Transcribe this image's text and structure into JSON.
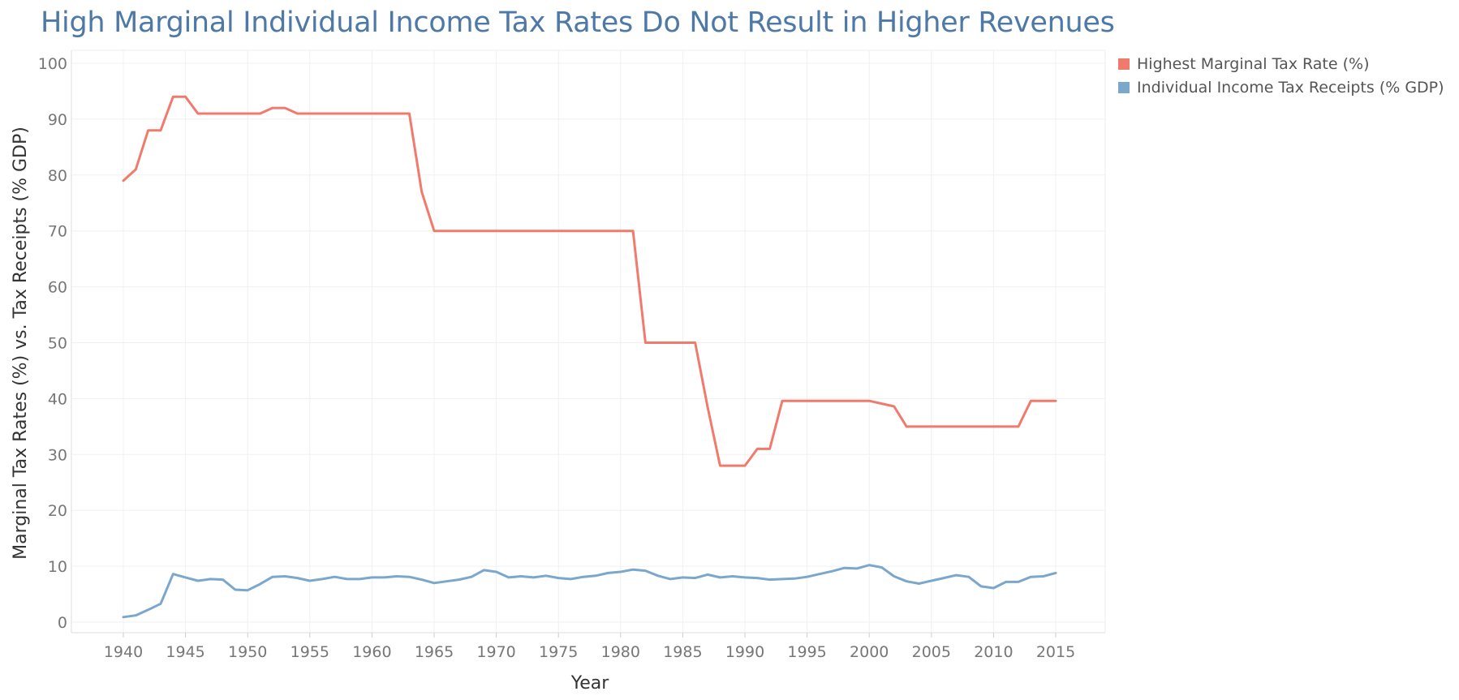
{
  "chart_data": {
    "type": "line",
    "title": "High Marginal Individual Income Tax Rates Do Not Result in Higher Revenues",
    "xlabel": "Year",
    "ylabel": "Marginal Tax Rates (%) vs. Tax Receipts (% GDP)",
    "xlim": [
      1940,
      2015
    ],
    "ylim": [
      0,
      100
    ],
    "x_ticks": [
      1940,
      1945,
      1950,
      1955,
      1960,
      1965,
      1970,
      1975,
      1980,
      1985,
      1990,
      1995,
      2000,
      2005,
      2010,
      2015
    ],
    "y_ticks": [
      0,
      10,
      20,
      30,
      40,
      50,
      60,
      70,
      80,
      90,
      100
    ],
    "grid": true,
    "legend_position": "top-right",
    "x": [
      1940,
      1941,
      1942,
      1943,
      1944,
      1945,
      1946,
      1947,
      1948,
      1949,
      1950,
      1951,
      1952,
      1953,
      1954,
      1955,
      1956,
      1957,
      1958,
      1959,
      1960,
      1961,
      1962,
      1963,
      1964,
      1965,
      1966,
      1967,
      1968,
      1969,
      1970,
      1971,
      1972,
      1973,
      1974,
      1975,
      1976,
      1977,
      1978,
      1979,
      1980,
      1981,
      1982,
      1983,
      1984,
      1985,
      1986,
      1987,
      1988,
      1989,
      1990,
      1991,
      1992,
      1993,
      1994,
      1995,
      1996,
      1997,
      1998,
      1999,
      2000,
      2001,
      2002,
      2003,
      2004,
      2005,
      2006,
      2007,
      2008,
      2009,
      2010,
      2011,
      2012,
      2013,
      2014,
      2015
    ],
    "series": [
      {
        "name": "Highest Marginal Tax Rate (%)",
        "color": "#f07b6c",
        "values": [
          79,
          81,
          88,
          88,
          94,
          94,
          91,
          91,
          91,
          91,
          91,
          91,
          92,
          92,
          91,
          91,
          91,
          91,
          91,
          91,
          91,
          91,
          91,
          91,
          77,
          70,
          70,
          70,
          70,
          70,
          70,
          70,
          70,
          70,
          70,
          70,
          70,
          70,
          70,
          70,
          70,
          70,
          50,
          50,
          50,
          50,
          50,
          38.5,
          28,
          28,
          28,
          31,
          31,
          39.6,
          39.6,
          39.6,
          39.6,
          39.6,
          39.6,
          39.6,
          39.6,
          39.1,
          38.6,
          35,
          35,
          35,
          35,
          35,
          35,
          35,
          35,
          35,
          35,
          39.6,
          39.6,
          39.6
        ]
      },
      {
        "name": "Individual Income Tax Receipts (% GDP)",
        "color": "#7ba7cc",
        "values": [
          0.9,
          1.2,
          2.2,
          3.3,
          8.6,
          8.0,
          7.4,
          7.7,
          7.6,
          5.8,
          5.7,
          6.8,
          8.1,
          8.2,
          7.9,
          7.4,
          7.7,
          8.1,
          7.7,
          7.7,
          8.0,
          8.0,
          8.2,
          8.1,
          7.6,
          7.0,
          7.3,
          7.6,
          8.1,
          9.3,
          9.0,
          8.0,
          8.2,
          8.0,
          8.3,
          7.9,
          7.7,
          8.1,
          8.3,
          8.8,
          9.0,
          9.4,
          9.2,
          8.3,
          7.7,
          8.0,
          7.9,
          8.5,
          8.0,
          8.2,
          8.0,
          7.9,
          7.6,
          7.7,
          7.8,
          8.1,
          8.6,
          9.1,
          9.7,
          9.6,
          10.2,
          9.8,
          8.2,
          7.3,
          6.9,
          7.4,
          7.9,
          8.4,
          8.1,
          6.4,
          6.1,
          7.2,
          7.2,
          8.1,
          8.2,
          8.8
        ]
      }
    ]
  }
}
